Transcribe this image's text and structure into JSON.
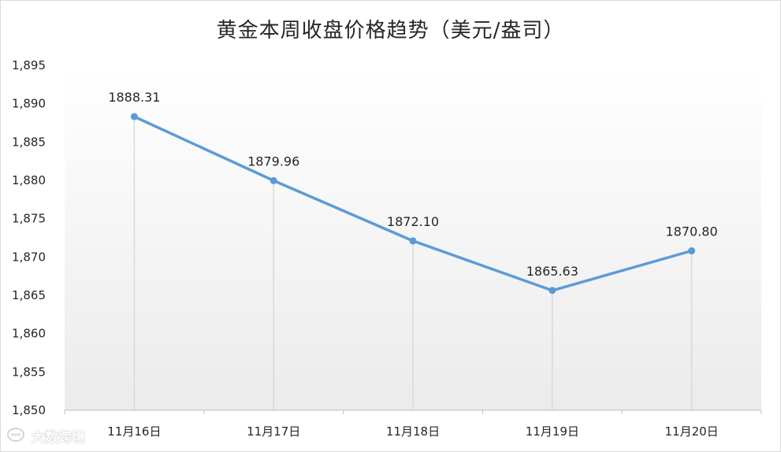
{
  "chart_data": {
    "type": "line",
    "title": "黄金本周收盘价格趋势（美元/盎司）",
    "categories": [
      "11月16日",
      "11月17日",
      "11月18日",
      "11月19日",
      "11月20日"
    ],
    "series": [
      {
        "values": [
          1888.31,
          1879.96,
          1872.1,
          1865.63,
          1870.8
        ]
      }
    ],
    "data_labels": [
      "1888.31",
      "1879.96",
      "1872.10",
      "1865.63",
      "1870.80"
    ],
    "y_ticks": [
      1850,
      1855,
      1860,
      1865,
      1870,
      1875,
      1880,
      1885,
      1890,
      1895
    ],
    "y_tick_labels": [
      "1,850",
      "1,855",
      "1,860",
      "1,865",
      "1,870",
      "1,875",
      "1,880",
      "1,885",
      "1,890",
      "1,895"
    ],
    "ylim": [
      1850,
      1895
    ],
    "xlabel": "",
    "ylabel": "",
    "grid": false,
    "drop_lines": true,
    "legend": "none",
    "colors": {
      "line": "#5b9bd5",
      "drop_line": "#d9d9d9",
      "axis": "#bfbfbf",
      "text": "#262626"
    }
  },
  "watermark": {
    "text": "大数跨境"
  }
}
